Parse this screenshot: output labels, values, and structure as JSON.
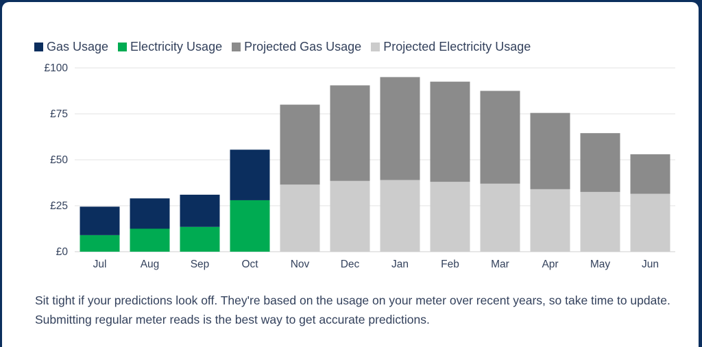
{
  "colors": {
    "gas": "#0b2e5e",
    "electricity": "#00ab52",
    "projected_gas": "#8b8b8b",
    "projected_electricity": "#cccccc",
    "grid": "#e3e3e3",
    "text": "#33415c"
  },
  "legend": [
    {
      "label": "Gas Usage",
      "color": "#0b2e5e"
    },
    {
      "label": "Electricity Usage",
      "color": "#00ab52"
    },
    {
      "label": "Projected Gas Usage",
      "color": "#8b8b8b"
    },
    {
      "label": "Projected Electricity Usage",
      "color": "#cccccc"
    }
  ],
  "chart_data": {
    "type": "bar",
    "stacked": true,
    "title": "",
    "xlabel": "",
    "ylabel": "",
    "ylim": [
      0,
      100
    ],
    "y_ticks": [
      "£0",
      "£25",
      "£50",
      "£75",
      "£100"
    ],
    "y_tick_values": [
      0,
      25,
      50,
      75,
      100
    ],
    "grid": true,
    "legend_position": "top-left",
    "categories": [
      "Jul",
      "Aug",
      "Sep",
      "Oct",
      "Nov",
      "Dec",
      "Jan",
      "Feb",
      "Mar",
      "Apr",
      "May",
      "Jun"
    ],
    "series": [
      {
        "name": "Electricity Usage",
        "values": [
          9,
          12.5,
          13.5,
          28,
          null,
          null,
          null,
          null,
          null,
          null,
          null,
          null
        ]
      },
      {
        "name": "Gas Usage",
        "values": [
          15.5,
          16.5,
          17.5,
          27.5,
          null,
          null,
          null,
          null,
          null,
          null,
          null,
          null
        ]
      },
      {
        "name": "Projected Electricity Usage",
        "values": [
          null,
          null,
          null,
          null,
          36.5,
          38.5,
          39,
          38,
          37,
          34,
          32.5,
          31.5
        ]
      },
      {
        "name": "Projected Gas Usage",
        "values": [
          null,
          null,
          null,
          null,
          43.5,
          52,
          56,
          54.5,
          50.5,
          41.5,
          32,
          21.5
        ]
      }
    ]
  },
  "footnote": "Sit tight if your predictions look off. They're based on the usage on your meter over recent years, so take time to update. Submitting regular meter reads is the best way to get accurate predictions."
}
